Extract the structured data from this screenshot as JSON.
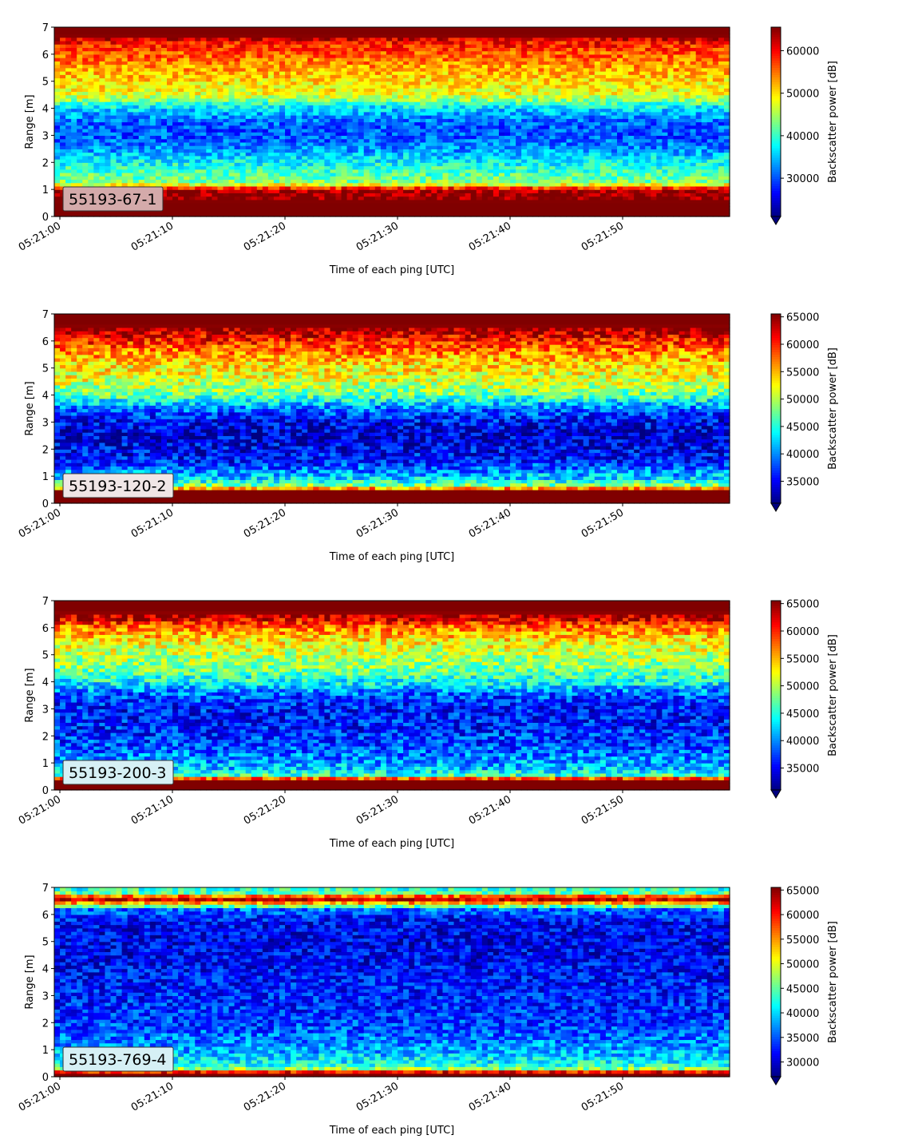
{
  "chart_data": [
    {
      "type": "heatmap",
      "panel_label": "55193-67-1",
      "label_box_color": "#d4aaaa",
      "ylabel": "Range [m]",
      "xlabel": "Time of each ping [UTC]",
      "x_tick_labels": [
        "05:21:00",
        "05:21:10",
        "05:21:20",
        "05:21:30",
        "05:21:40",
        "05:21:50"
      ],
      "y_ticks": [
        0,
        1,
        2,
        3,
        4,
        5,
        6,
        7
      ],
      "ylim": [
        0,
        7
      ],
      "colorbar_label": "Backscatter power [dB]",
      "colorbar_range": [
        21000,
        65535
      ],
      "colorbar_ticks": [
        30000,
        40000,
        50000,
        60000
      ],
      "colorbar_extend_min": true,
      "range_profile_m": [
        0,
        0.5,
        1.0,
        1.15,
        1.3,
        1.6,
        2.0,
        2.5,
        3.0,
        3.5,
        4.0,
        4.5,
        5.0,
        5.5,
        6.0,
        6.5,
        6.7,
        7.0
      ],
      "range_profile_db": [
        65535,
        65535,
        64000,
        50000,
        43000,
        41000,
        38000,
        33000,
        30000,
        31000,
        36000,
        48000,
        50000,
        53000,
        56000,
        60000,
        65535,
        65535
      ]
    },
    {
      "type": "heatmap",
      "panel_label": "55193-120-2",
      "label_box_color": "#f0e6e6",
      "ylabel": "Range [m]",
      "xlabel": "Time of each ping [UTC]",
      "x_tick_labels": [
        "05:21:00",
        "05:21:10",
        "05:21:20",
        "05:21:30",
        "05:21:40",
        "05:21:50"
      ],
      "y_ticks": [
        0,
        1,
        2,
        3,
        4,
        5,
        6,
        7
      ],
      "ylim": [
        0,
        7
      ],
      "colorbar_label": "Backscatter power [dB]",
      "colorbar_range": [
        31000,
        65535
      ],
      "colorbar_ticks": [
        35000,
        40000,
        45000,
        50000,
        55000,
        60000,
        65000
      ],
      "colorbar_extend_min": true,
      "range_profile_m": [
        0,
        0.5,
        0.6,
        0.9,
        1.2,
        1.6,
        2.0,
        2.5,
        3.0,
        3.5,
        4.0,
        4.5,
        5.0,
        5.5,
        6.0,
        6.3,
        6.6,
        7.0
      ],
      "range_profile_db": [
        65535,
        65535,
        50000,
        43000,
        40000,
        36000,
        35000,
        34000,
        35000,
        39000,
        47000,
        51000,
        53000,
        56000,
        60000,
        63000,
        65535,
        65535
      ]
    },
    {
      "type": "heatmap",
      "panel_label": "55193-200-3",
      "label_box_color": "#d6f0f5",
      "ylabel": "Range [m]",
      "xlabel": "Time of each ping [UTC]",
      "x_tick_labels": [
        "05:21:00",
        "05:21:10",
        "05:21:20",
        "05:21:30",
        "05:21:40",
        "05:21:50"
      ],
      "y_ticks": [
        0,
        1,
        2,
        3,
        4,
        5,
        6,
        7
      ],
      "ylim": [
        0,
        7
      ],
      "colorbar_label": "Backscatter power [dB]",
      "colorbar_range": [
        31000,
        65535
      ],
      "colorbar_ticks": [
        35000,
        40000,
        45000,
        50000,
        55000,
        60000,
        65000
      ],
      "colorbar_extend_min": true,
      "range_profile_m": [
        0,
        0.4,
        0.5,
        0.8,
        1.2,
        1.6,
        2.0,
        2.5,
        3.0,
        3.5,
        4.0,
        4.5,
        5.0,
        5.5,
        6.0,
        6.3,
        6.6,
        7.0
      ],
      "range_profile_db": [
        65535,
        65535,
        47000,
        42000,
        40000,
        38000,
        37000,
        36000,
        36000,
        38000,
        44000,
        48000,
        50000,
        53000,
        57000,
        62000,
        65535,
        65535
      ]
    },
    {
      "type": "heatmap",
      "panel_label": "55193-769-4",
      "label_box_color": "#d6f0f5",
      "ylabel": "Range [m]",
      "xlabel": "Time of each ping [UTC]",
      "x_tick_labels": [
        "05:21:00",
        "05:21:10",
        "05:21:20",
        "05:21:30",
        "05:21:40",
        "05:21:50"
      ],
      "y_ticks": [
        0,
        1,
        2,
        3,
        4,
        5,
        6,
        7
      ],
      "ylim": [
        0,
        7
      ],
      "colorbar_label": "Backscatter power [dB]",
      "colorbar_range": [
        27000,
        65535
      ],
      "colorbar_ticks": [
        30000,
        35000,
        40000,
        45000,
        50000,
        55000,
        60000,
        65000
      ],
      "colorbar_extend_min": true,
      "range_profile_m": [
        0,
        0.15,
        0.25,
        0.35,
        0.6,
        1.0,
        1.5,
        2.0,
        3.0,
        4.0,
        5.0,
        5.8,
        6.2,
        6.4,
        6.6,
        6.8,
        7.0
      ],
      "range_profile_db": [
        65535,
        65535,
        52000,
        44000,
        41000,
        38000,
        36000,
        34000,
        33000,
        32000,
        31000,
        32000,
        36000,
        52000,
        65535,
        45000,
        42000
      ]
    }
  ]
}
